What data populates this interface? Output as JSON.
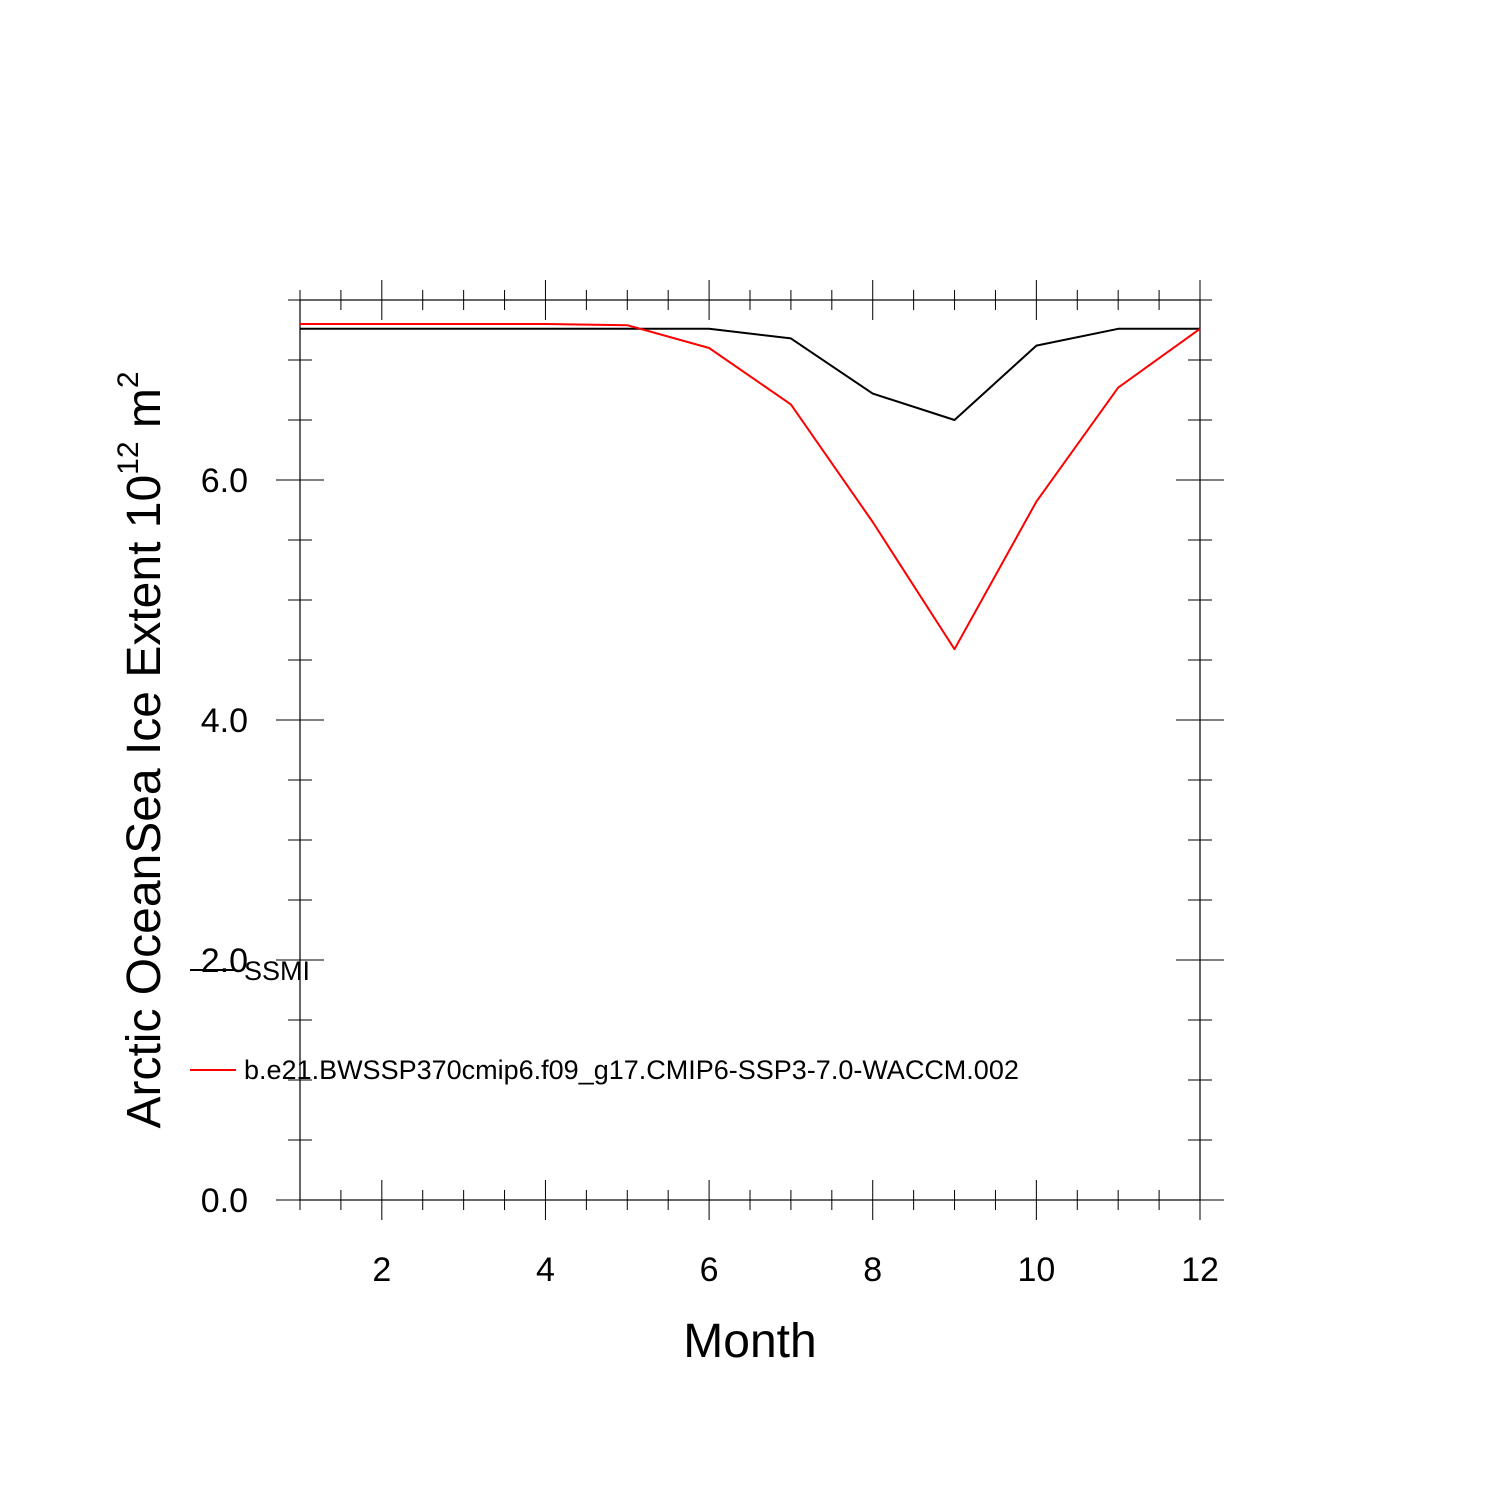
{
  "chart_data": {
    "type": "line",
    "xlabel": "Month",
    "ylabel_main": "Arctic OceanSea Ice Extent 10",
    "ylabel_exp": "12",
    "ylabel_unit": " m",
    "ylabel_unit_exp": "2",
    "xlim": [
      1,
      12
    ],
    "ylim": [
      0,
      7.5
    ],
    "x_ticks": [
      2,
      4,
      6,
      8,
      10,
      12
    ],
    "x_tick_labels": [
      "2",
      "4",
      "6",
      "8",
      "10",
      "12"
    ],
    "y_ticks": [
      0,
      2,
      4,
      6
    ],
    "y_tick_labels": [
      "0.0",
      "2.0",
      "4.0",
      "6.0"
    ],
    "grid": false,
    "legend_position": "bottom-left inside",
    "series": [
      {
        "name": "SSMI",
        "color": "#000000",
        "x": [
          1,
          2,
          3,
          4,
          5,
          6,
          7,
          8,
          9,
          10,
          11,
          12
        ],
        "values": [
          7.26,
          7.26,
          7.26,
          7.26,
          7.26,
          7.26,
          7.18,
          6.72,
          6.5,
          7.12,
          7.26,
          7.26
        ]
      },
      {
        "name": "b.e21.BWSSP370cmip6.f09_g17.CMIP6-SSP3-7.0-WACCM.002",
        "color": "#ff0000",
        "x": [
          1,
          2,
          3,
          4,
          5,
          6,
          7,
          8,
          9,
          10,
          11,
          12
        ],
        "values": [
          7.3,
          7.3,
          7.3,
          7.3,
          7.29,
          7.1,
          6.63,
          5.65,
          4.59,
          5.82,
          6.77,
          7.26
        ]
      }
    ]
  }
}
